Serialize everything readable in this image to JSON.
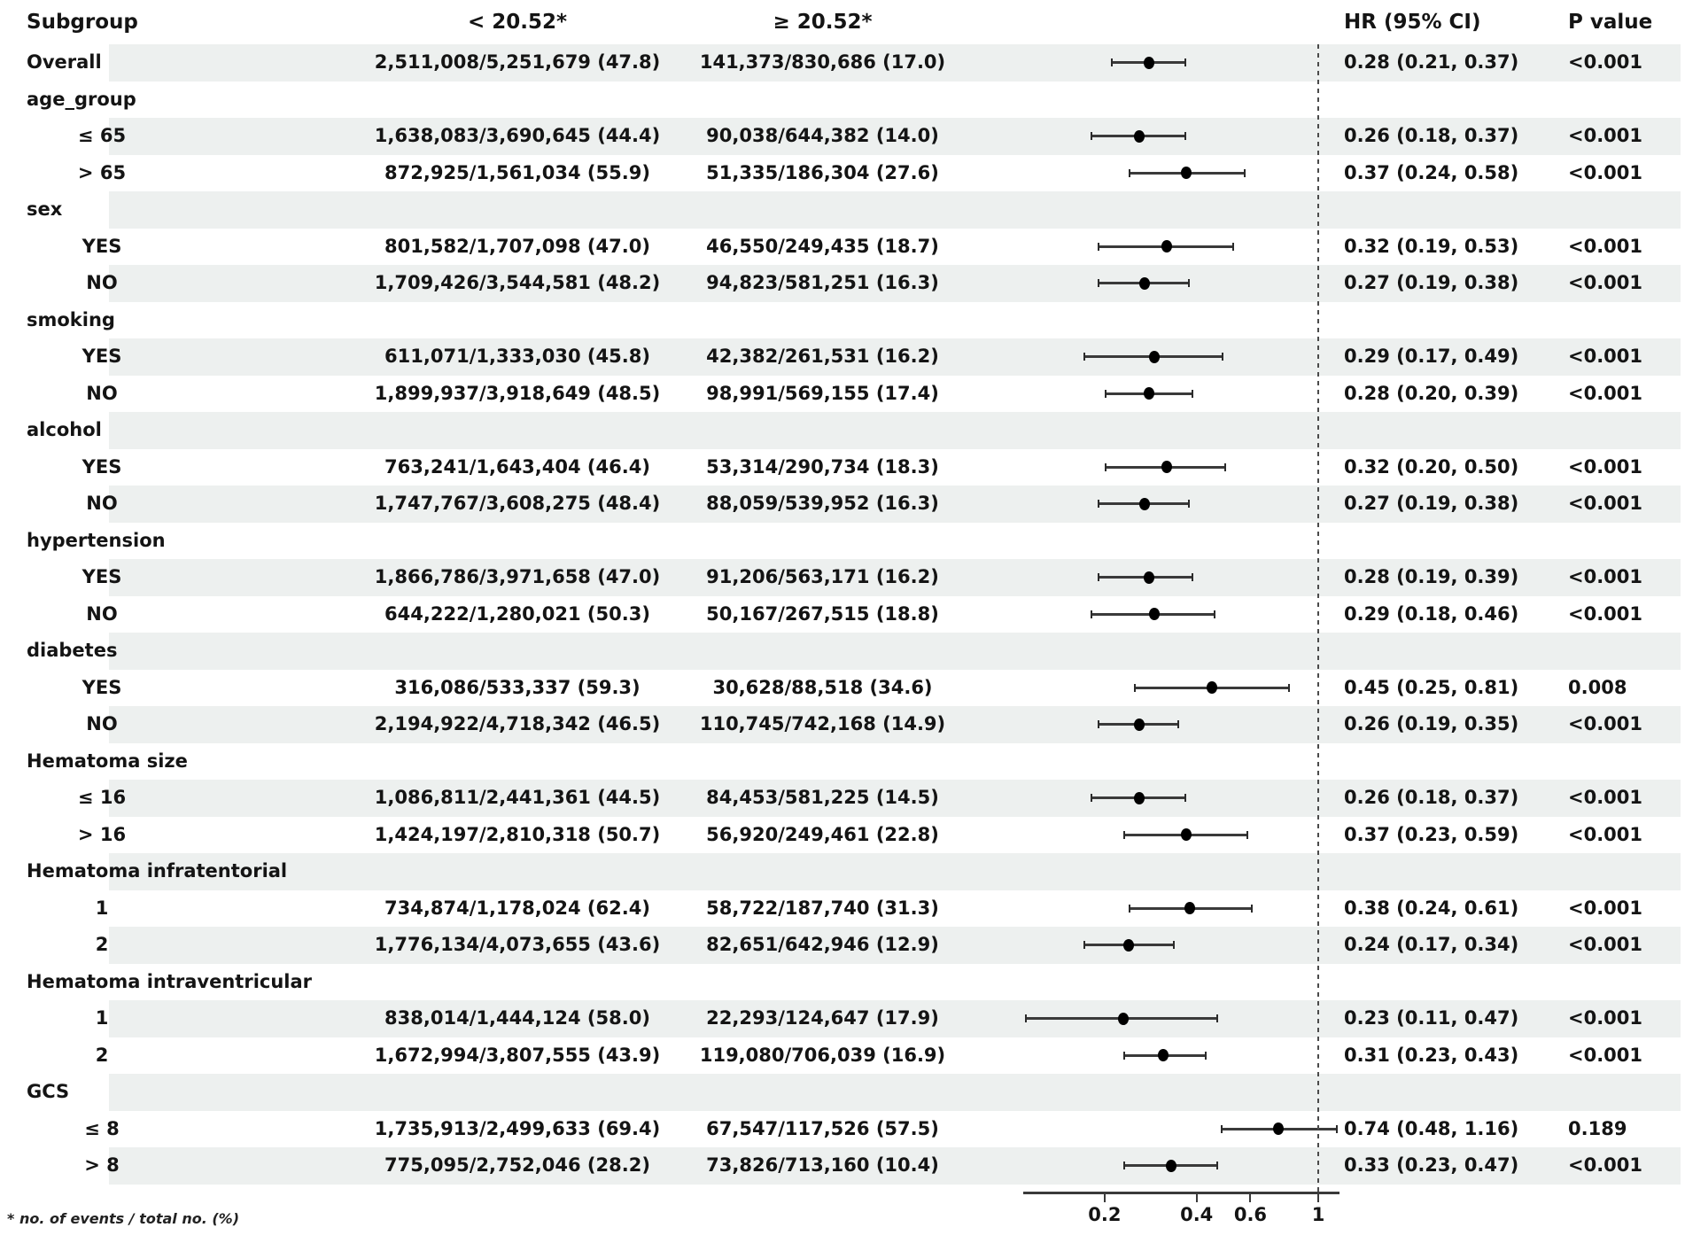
{
  "header": {
    "subgroup": "Subgroup",
    "col1": "< 20.52*",
    "col2": "≥ 20.52*",
    "hr": "HR (95% CI)",
    "p": "P value"
  },
  "footnote": "* no. of events / total no. (%)",
  "colors": {
    "band": "#edf0ef",
    "text": "#141414",
    "line": "#3a3a3a",
    "marker": "#000000"
  },
  "chart_data": {
    "type": "forest",
    "title": "",
    "column_headers": [
      "Subgroup",
      "< 20.52*",
      "≥ 20.52*",
      "HR (95% CI)",
      "P value"
    ],
    "x_axis": {
      "scale": "log",
      "range": [
        0.108,
        1.17
      ],
      "ticks": [
        0.2,
        0.4,
        0.6,
        1
      ],
      "tick_labels": [
        "0.2",
        "0.4",
        "0.6",
        "1"
      ],
      "reference_line": 1,
      "grid": false
    },
    "rows": [
      {
        "label": "Overall",
        "group": false,
        "indent": false,
        "col1": "2,511,008/5,251,679 (47.8)",
        "col2": "141,373/830,686 (17.0)",
        "hr": 0.28,
        "lo": 0.21,
        "hi": 0.37,
        "hr_ci": "0.28 (0.21, 0.37)",
        "p": "<0.001"
      },
      {
        "label": "age_group",
        "group": true
      },
      {
        "label": "≤ 65",
        "group": false,
        "indent": true,
        "col1": "1,638,083/3,690,645 (44.4)",
        "col2": "90,038/644,382 (14.0)",
        "hr": 0.26,
        "lo": 0.18,
        "hi": 0.37,
        "hr_ci": "0.26 (0.18, 0.37)",
        "p": "<0.001"
      },
      {
        "label": "> 65",
        "group": false,
        "indent": true,
        "col1": "872,925/1,561,034 (55.9)",
        "col2": "51,335/186,304 (27.6)",
        "hr": 0.37,
        "lo": 0.24,
        "hi": 0.58,
        "hr_ci": "0.37 (0.24, 0.58)",
        "p": "<0.001"
      },
      {
        "label": "sex",
        "group": true
      },
      {
        "label": "YES",
        "group": false,
        "indent": true,
        "col1": "801,582/1,707,098 (47.0)",
        "col2": "46,550/249,435 (18.7)",
        "hr": 0.32,
        "lo": 0.19,
        "hi": 0.53,
        "hr_ci": "0.32 (0.19, 0.53)",
        "p": "<0.001"
      },
      {
        "label": "NO",
        "group": false,
        "indent": true,
        "col1": "1,709,426/3,544,581 (48.2)",
        "col2": "94,823/581,251 (16.3)",
        "hr": 0.27,
        "lo": 0.19,
        "hi": 0.38,
        "hr_ci": "0.27 (0.19, 0.38)",
        "p": "<0.001"
      },
      {
        "label": "smoking",
        "group": true
      },
      {
        "label": "YES",
        "group": false,
        "indent": true,
        "col1": "611,071/1,333,030 (45.8)",
        "col2": "42,382/261,531 (16.2)",
        "hr": 0.29,
        "lo": 0.17,
        "hi": 0.49,
        "hr_ci": "0.29 (0.17, 0.49)",
        "p": "<0.001"
      },
      {
        "label": "NO",
        "group": false,
        "indent": true,
        "col1": "1,899,937/3,918,649 (48.5)",
        "col2": "98,991/569,155 (17.4)",
        "hr": 0.28,
        "lo": 0.2,
        "hi": 0.39,
        "hr_ci": "0.28 (0.20, 0.39)",
        "p": "<0.001"
      },
      {
        "label": "alcohol",
        "group": true
      },
      {
        "label": "YES",
        "group": false,
        "indent": true,
        "col1": "763,241/1,643,404 (46.4)",
        "col2": "53,314/290,734 (18.3)",
        "hr": 0.32,
        "lo": 0.2,
        "hi": 0.5,
        "hr_ci": "0.32 (0.20, 0.50)",
        "p": "<0.001"
      },
      {
        "label": "NO",
        "group": false,
        "indent": true,
        "col1": "1,747,767/3,608,275 (48.4)",
        "col2": "88,059/539,952 (16.3)",
        "hr": 0.27,
        "lo": 0.19,
        "hi": 0.38,
        "hr_ci": "0.27 (0.19, 0.38)",
        "p": "<0.001"
      },
      {
        "label": "hypertension",
        "group": true
      },
      {
        "label": "YES",
        "group": false,
        "indent": true,
        "col1": "1,866,786/3,971,658 (47.0)",
        "col2": "91,206/563,171 (16.2)",
        "hr": 0.28,
        "lo": 0.19,
        "hi": 0.39,
        "hr_ci": "0.28 (0.19, 0.39)",
        "p": "<0.001"
      },
      {
        "label": "NO",
        "group": false,
        "indent": true,
        "col1": "644,222/1,280,021 (50.3)",
        "col2": "50,167/267,515 (18.8)",
        "hr": 0.29,
        "lo": 0.18,
        "hi": 0.46,
        "hr_ci": "0.29 (0.18, 0.46)",
        "p": "<0.001"
      },
      {
        "label": "diabetes",
        "group": true
      },
      {
        "label": "YES",
        "group": false,
        "indent": true,
        "col1": "316,086/533,337 (59.3)",
        "col2": "30,628/88,518 (34.6)",
        "hr": 0.45,
        "lo": 0.25,
        "hi": 0.81,
        "hr_ci": "0.45 (0.25, 0.81)",
        "p": "0.008"
      },
      {
        "label": "NO",
        "group": false,
        "indent": true,
        "col1": "2,194,922/4,718,342 (46.5)",
        "col2": "110,745/742,168 (14.9)",
        "hr": 0.26,
        "lo": 0.19,
        "hi": 0.35,
        "hr_ci": "0.26 (0.19, 0.35)",
        "p": "<0.001"
      },
      {
        "label": "Hematoma size",
        "group": true
      },
      {
        "label": "≤ 16",
        "group": false,
        "indent": true,
        "col1": "1,086,811/2,441,361 (44.5)",
        "col2": "84,453/581,225 (14.5)",
        "hr": 0.26,
        "lo": 0.18,
        "hi": 0.37,
        "hr_ci": "0.26 (0.18, 0.37)",
        "p": "<0.001"
      },
      {
        "label": "> 16",
        "group": false,
        "indent": true,
        "col1": "1,424,197/2,810,318 (50.7)",
        "col2": "56,920/249,461 (22.8)",
        "hr": 0.37,
        "lo": 0.23,
        "hi": 0.59,
        "hr_ci": "0.37 (0.23, 0.59)",
        "p": "<0.001"
      },
      {
        "label": "Hematoma infratentorial",
        "group": true
      },
      {
        "label": "1",
        "group": false,
        "indent": true,
        "col1": "734,874/1,178,024 (62.4)",
        "col2": "58,722/187,740 (31.3)",
        "hr": 0.38,
        "lo": 0.24,
        "hi": 0.61,
        "hr_ci": "0.38 (0.24, 0.61)",
        "p": "<0.001"
      },
      {
        "label": "2",
        "group": false,
        "indent": true,
        "col1": "1,776,134/4,073,655 (43.6)",
        "col2": "82,651/642,946 (12.9)",
        "hr": 0.24,
        "lo": 0.17,
        "hi": 0.34,
        "hr_ci": "0.24 (0.17, 0.34)",
        "p": "<0.001"
      },
      {
        "label": "Hematoma intraventricular",
        "group": true
      },
      {
        "label": "1",
        "group": false,
        "indent": true,
        "col1": "838,014/1,444,124 (58.0)",
        "col2": "22,293/124,647 (17.9)",
        "hr": 0.23,
        "lo": 0.11,
        "hi": 0.47,
        "hr_ci": "0.23 (0.11, 0.47)",
        "p": "<0.001"
      },
      {
        "label": "2",
        "group": false,
        "indent": true,
        "col1": "1,672,994/3,807,555 (43.9)",
        "col2": "119,080/706,039 (16.9)",
        "hr": 0.31,
        "lo": 0.23,
        "hi": 0.43,
        "hr_ci": "0.31 (0.23, 0.43)",
        "p": "<0.001"
      },
      {
        "label": "GCS",
        "group": true
      },
      {
        "label": "≤ 8",
        "group": false,
        "indent": true,
        "col1": "1,735,913/2,499,633 (69.4)",
        "col2": "67,547/117,526 (57.5)",
        "hr": 0.74,
        "lo": 0.48,
        "hi": 1.16,
        "hr_ci": "0.74 (0.48, 1.16)",
        "p": "0.189"
      },
      {
        "label": "> 8",
        "group": false,
        "indent": true,
        "col1": "775,095/2,752,046 (28.2)",
        "col2": "73,826/713,160 (10.4)",
        "hr": 0.33,
        "lo": 0.23,
        "hi": 0.47,
        "hr_ci": "0.33 (0.23, 0.47)",
        "p": "<0.001"
      }
    ]
  }
}
